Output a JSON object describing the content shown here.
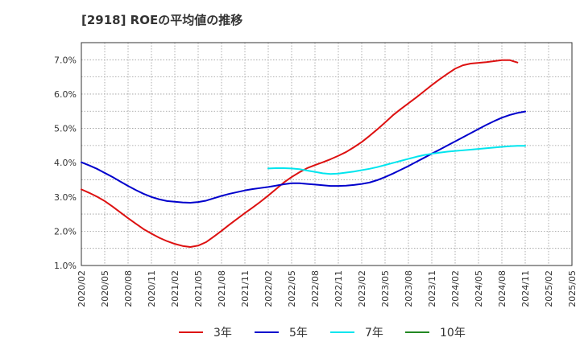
{
  "chart_data": {
    "type": "line",
    "title": "[2918]  ROEの平均値の推移",
    "xlabel": "",
    "ylabel": "",
    "ylim": [
      1.0,
      7.5
    ],
    "y_ticks": [
      "1.0%",
      "2.0%",
      "3.0%",
      "4.0%",
      "5.0%",
      "6.0%",
      "7.0%"
    ],
    "y_tick_values": [
      1.0,
      2.0,
      3.0,
      4.0,
      5.0,
      6.0,
      7.0
    ],
    "x_ticks": [
      "2020/02",
      "2020/05",
      "2020/08",
      "2020/11",
      "2021/02",
      "2021/05",
      "2021/08",
      "2021/11",
      "2022/02",
      "2022/05",
      "2022/08",
      "2022/11",
      "2023/02",
      "2023/05",
      "2023/08",
      "2023/11",
      "2024/02",
      "2024/05",
      "2024/08",
      "2024/11",
      "2025/02",
      "2025/05"
    ],
    "grid": true,
    "legend_position": "bottom",
    "series": [
      {
        "name": "3年",
        "color": "#dd1111",
        "start_index": 0,
        "values": [
          3.22,
          3.12,
          3.01,
          2.88,
          2.72,
          2.55,
          2.38,
          2.22,
          2.06,
          1.93,
          1.81,
          1.71,
          1.63,
          1.57,
          1.54,
          1.58,
          1.68,
          1.84,
          2.01,
          2.19,
          2.36,
          2.53,
          2.69,
          2.86,
          3.04,
          3.23,
          3.42,
          3.58,
          3.72,
          3.84,
          3.93,
          4.01,
          4.1,
          4.2,
          4.31,
          4.45,
          4.6,
          4.78,
          4.97,
          5.17,
          5.38,
          5.56,
          5.73,
          5.9,
          6.08,
          6.26,
          6.43,
          6.59,
          6.74,
          6.84,
          6.89,
          6.91,
          6.93,
          6.96,
          6.99,
          6.99,
          6.92
        ]
      },
      {
        "name": "5年",
        "color": "#0000cc",
        "start_index": 0,
        "values": [
          4.01,
          3.92,
          3.82,
          3.7,
          3.58,
          3.45,
          3.32,
          3.2,
          3.09,
          3.0,
          2.93,
          2.88,
          2.86,
          2.84,
          2.83,
          2.85,
          2.89,
          2.96,
          3.03,
          3.09,
          3.14,
          3.19,
          3.23,
          3.26,
          3.29,
          3.33,
          3.37,
          3.4,
          3.4,
          3.38,
          3.36,
          3.34,
          3.32,
          3.32,
          3.33,
          3.35,
          3.38,
          3.42,
          3.49,
          3.58,
          3.68,
          3.79,
          3.9,
          4.02,
          4.14,
          4.26,
          4.38,
          4.5,
          4.62,
          4.74,
          4.86,
          4.98,
          5.1,
          5.21,
          5.31,
          5.39,
          5.45,
          5.49
        ]
      },
      {
        "name": "7年",
        "color": "#00e5ee",
        "start_index": 24,
        "values": [
          3.83,
          3.84,
          3.84,
          3.83,
          3.81,
          3.77,
          3.73,
          3.69,
          3.67,
          3.68,
          3.71,
          3.74,
          3.78,
          3.82,
          3.87,
          3.93,
          3.99,
          4.05,
          4.11,
          4.17,
          4.22,
          4.26,
          4.29,
          4.32,
          4.34,
          4.36,
          4.38,
          4.4,
          4.42,
          4.44,
          4.46,
          4.48,
          4.49,
          4.49
        ]
      },
      {
        "name": "10年",
        "color": "#228822",
        "start_index": 0,
        "values": []
      }
    ]
  }
}
